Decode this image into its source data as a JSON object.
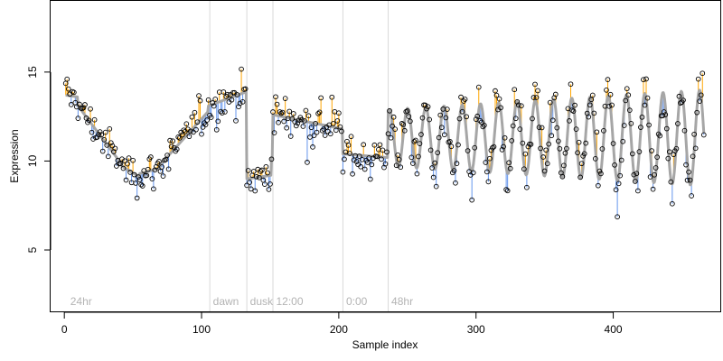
{
  "chart_data": {
    "type": "scatter",
    "title": "",
    "xlabel": "Sample index",
    "ylabel": "Expression",
    "xlim": [
      -10,
      478
    ],
    "ylim": [
      1.5,
      19
    ],
    "xticks": [
      0,
      100,
      200,
      300,
      400
    ],
    "yticks": [
      5,
      10,
      15
    ],
    "grid": false,
    "phase_boundaries": [
      106,
      133,
      152,
      203,
      236
    ],
    "phase_labels": [
      {
        "text": "24hr",
        "x": 3
      },
      {
        "text": "dawn",
        "x": 107
      },
      {
        "text": "dusk",
        "x": 134
      },
      {
        "text": "12:00",
        "x": 153
      },
      {
        "text": "0:00",
        "x": 204
      },
      {
        "text": "48hr",
        "x": 237
      }
    ],
    "colors": {
      "fit_line": "#a6a6a6",
      "residual_above": "#ffa500",
      "residual_below": "#6495ed",
      "phase_line": "#d9d9d9",
      "phase_label": "#b3b3b3",
      "point_edge": "#000000"
    },
    "segments": [
      {
        "x_start": 1,
        "x_end": 10,
        "y_start": 13.7,
        "y_end": 13.6
      },
      {
        "x_start": 10,
        "x_end": 42,
        "y_start": 13.1,
        "y_end": 9.8
      },
      {
        "x_start": 42,
        "x_end": 55,
        "y_start": 9.7,
        "y_end": 9.1
      },
      {
        "x_start": 55,
        "x_end": 70,
        "y_start": 9.3,
        "y_end": 9.6
      },
      {
        "x_start": 70,
        "x_end": 105,
        "y_start": 9.8,
        "y_end": 12.8
      },
      {
        "x_start": 105,
        "x_end": 133,
        "y_start": 13.1,
        "y_end": 13.9
      },
      {
        "x_start": 133,
        "x_end": 151,
        "y_start": 9.0,
        "y_end": 9.2
      },
      {
        "x_start": 152,
        "x_end": 203,
        "y_start": 12.6,
        "y_end": 11.8
      },
      {
        "x_start": 203,
        "x_end": 235,
        "y_start": 10.4,
        "y_end": 10.2
      }
    ],
    "oscillation": {
      "x_start": 236,
      "x_end": 466,
      "mean": 11.3,
      "amplitude_start": 1.6,
      "amplitude_end": 2.7,
      "period": 13.3,
      "phase": 1.2
    },
    "points": {
      "count": 466,
      "x_start": 1,
      "x_end": 466,
      "noise_sd": 0.5,
      "noise_sd_late": 0.75
    }
  }
}
